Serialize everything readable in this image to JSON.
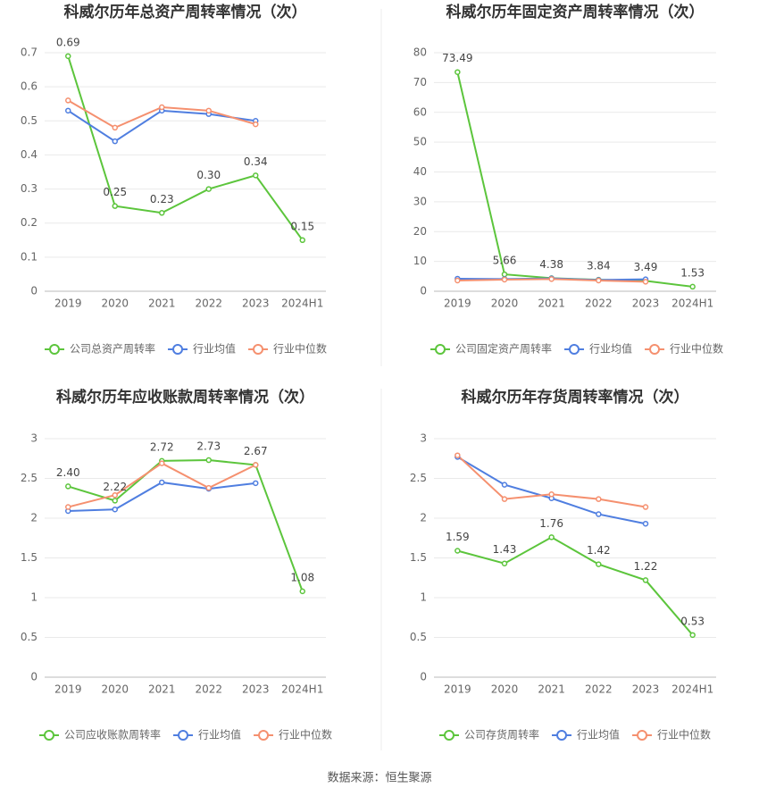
{
  "chart_data": [
    {
      "type": "line",
      "title": "科威尔历年总资产周转率情况（次）",
      "categories": [
        "2019",
        "2020",
        "2021",
        "2022",
        "2023",
        "2024H1"
      ],
      "ylim": [
        0,
        0.7
      ],
      "yticks": [
        0,
        0.1,
        0.2,
        0.3,
        0.4,
        0.5,
        0.6,
        0.7
      ],
      "grid": true,
      "legend": "bottom",
      "series": [
        {
          "name": "公司总资产周转率",
          "color": "#5cc53c",
          "values": [
            0.69,
            0.25,
            0.23,
            0.3,
            0.34,
            0.15
          ],
          "value_labels": [
            "0.69",
            "0.25",
            "0.23",
            "0.30",
            "0.34",
            "0.15"
          ]
        },
        {
          "name": "行业均值",
          "color": "#4f7ee0",
          "values": [
            0.53,
            0.44,
            0.53,
            0.52,
            0.5,
            null
          ]
        },
        {
          "name": "行业中位数",
          "color": "#f5906f",
          "values": [
            0.56,
            0.48,
            0.54,
            0.53,
            0.49,
            null
          ]
        }
      ]
    },
    {
      "type": "line",
      "title": "科威尔历年固定资产周转率情况（次）",
      "categories": [
        "2019",
        "2020",
        "2021",
        "2022",
        "2023",
        "2024H1"
      ],
      "ylim": [
        0,
        80
      ],
      "yticks": [
        0,
        10,
        20,
        30,
        40,
        50,
        60,
        70,
        80
      ],
      "grid": true,
      "legend": "bottom",
      "series": [
        {
          "name": "公司固定资产周转率",
          "color": "#5cc53c",
          "values": [
            73.49,
            5.66,
            4.38,
            3.84,
            3.49,
            1.53
          ],
          "value_labels": [
            "73.49",
            "5.66",
            "4.38",
            "3.84",
            "3.49",
            "1.53"
          ]
        },
        {
          "name": "行业均值",
          "color": "#4f7ee0",
          "values": [
            4.2,
            4.1,
            4.3,
            3.8,
            4.0,
            null
          ]
        },
        {
          "name": "行业中位数",
          "color": "#f5906f",
          "values": [
            3.6,
            3.9,
            4.1,
            3.6,
            3.2,
            null
          ]
        }
      ]
    },
    {
      "type": "line",
      "title": "科威尔历年应收账款周转率情况（次）",
      "categories": [
        "2019",
        "2020",
        "2021",
        "2022",
        "2023",
        "2024H1"
      ],
      "ylim": [
        0,
        3
      ],
      "yticks": [
        0,
        0.5,
        1,
        1.5,
        2,
        2.5,
        3
      ],
      "grid": true,
      "legend": "bottom",
      "series": [
        {
          "name": "公司应收账款周转率",
          "color": "#5cc53c",
          "values": [
            2.4,
            2.22,
            2.72,
            2.73,
            2.67,
            1.08
          ],
          "value_labels": [
            "2.40",
            "2.22",
            "2.72",
            "2.73",
            "2.67",
            "1.08"
          ]
        },
        {
          "name": "行业均值",
          "color": "#4f7ee0",
          "values": [
            2.09,
            2.11,
            2.45,
            2.37,
            2.44,
            null
          ]
        },
        {
          "name": "行业中位数",
          "color": "#f5906f",
          "values": [
            2.14,
            2.29,
            2.69,
            2.38,
            2.67,
            null
          ]
        }
      ]
    },
    {
      "type": "line",
      "title": "科威尔历年存货周转率情况（次）",
      "categories": [
        "2019",
        "2020",
        "2021",
        "2022",
        "2023",
        "2024H1"
      ],
      "ylim": [
        0,
        3
      ],
      "yticks": [
        0,
        0.5,
        1,
        1.5,
        2,
        2.5,
        3
      ],
      "grid": true,
      "legend": "bottom",
      "series": [
        {
          "name": "公司存货周转率",
          "color": "#5cc53c",
          "values": [
            1.59,
            1.43,
            1.76,
            1.42,
            1.22,
            0.53
          ],
          "value_labels": [
            "1.59",
            "1.43",
            "1.76",
            "1.42",
            "1.22",
            "0.53"
          ]
        },
        {
          "name": "行业均值",
          "color": "#4f7ee0",
          "values": [
            2.77,
            2.42,
            2.25,
            2.05,
            1.93,
            null
          ]
        },
        {
          "name": "行业中位数",
          "color": "#f5906f",
          "values": [
            2.79,
            2.24,
            2.3,
            2.24,
            2.14,
            null
          ]
        }
      ]
    }
  ],
  "source": "数据来源：恒生聚源"
}
